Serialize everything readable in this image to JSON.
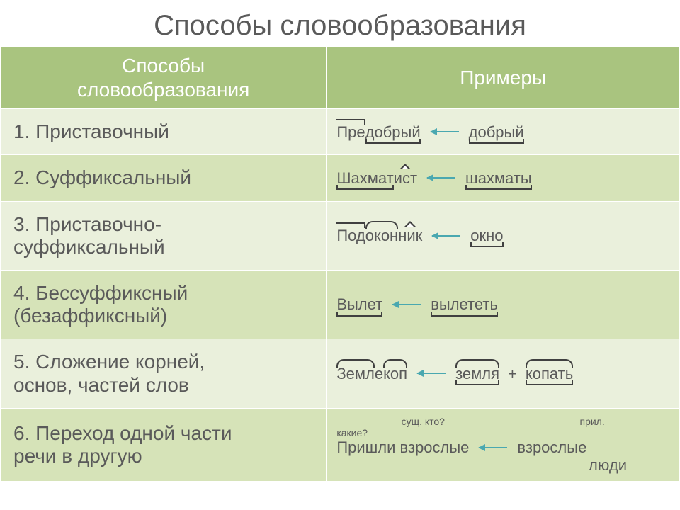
{
  "title": "Способы словообразования",
  "colors": {
    "header_bg": "#a9c47f",
    "row_alt_a": "#eaf0dc",
    "row_alt_b": "#d6e3b8",
    "text": "#5a5a5a",
    "header_text": "#ffffff",
    "arrow": "#4aa8b0",
    "morpheme": "#404040"
  },
  "layout": {
    "col1_width_pct": 48,
    "col2_width_pct": 52,
    "title_fontsize": 40,
    "header_fontsize": 28,
    "method_fontsize": 28,
    "example_fontsize": 22
  },
  "headers": {
    "col1_line1": "Способы",
    "col1_line2": "словообразования",
    "col2": "Примеры"
  },
  "rows": [
    {
      "num": "1.",
      "method": "Приставочный",
      "example": {
        "kind": "derive",
        "result": {
          "parts": [
            {
              "t": "Пре",
              "m": "prefix"
            },
            {
              "t": "добрый",
              "m": "base"
            }
          ]
        },
        "source": {
          "parts": [
            {
              "t": "добрый",
              "m": "base"
            }
          ]
        }
      }
    },
    {
      "num": "2.",
      "method": "Суффиксальный",
      "example": {
        "kind": "derive",
        "result": {
          "parts": [
            {
              "t": "Шахмат",
              "m": "base"
            },
            {
              "t": "ист",
              "m": "suffix"
            }
          ]
        },
        "source": {
          "parts": [
            {
              "t": "шахматы",
              "m": "base"
            }
          ]
        }
      }
    },
    {
      "num": "3.",
      "method_line1": "Приставочно-",
      "method_line2": "суффиксальный",
      "example": {
        "kind": "derive",
        "result": {
          "parts": [
            {
              "t": "Под",
              "m": "prefix"
            },
            {
              "t": "окон",
              "m": "root"
            },
            {
              "t": "ник",
              "m": "suffix"
            }
          ]
        },
        "source": {
          "parts": [
            {
              "t": "окно",
              "m": "base"
            }
          ]
        }
      }
    },
    {
      "num": "4.",
      "method_line1": "Бессуффиксный",
      "method_line2": "(безаффиксный)",
      "example": {
        "kind": "derive",
        "result": {
          "parts": [
            {
              "t": "Вылет",
              "m": "base"
            }
          ]
        },
        "source": {
          "parts": [
            {
              "t": "вылететь",
              "m": "base"
            }
          ]
        }
      }
    },
    {
      "num": "5.",
      "method_line1": "Сложение корней,",
      "method_line2": "основ, частей слов",
      "example": {
        "kind": "compound",
        "result": {
          "parts": [
            {
              "t": "Земл",
              "m": "root"
            },
            {
              "t": "е",
              "m": ""
            },
            {
              "t": "коп",
              "m": "root"
            }
          ]
        },
        "sources": [
          {
            "parts": [
              {
                "t": "земля",
                "m": "root-base"
              }
            ]
          },
          {
            "parts": [
              {
                "t": "копать",
                "m": "root-base"
              }
            ]
          }
        ],
        "plus": "+"
      }
    },
    {
      "num": "6.",
      "method_line1": "Переход одной части",
      "method_line2": "речи в другую",
      "example": {
        "kind": "conversion",
        "top_labels": {
          "left": "сущ. кто?",
          "right": "прил."
        },
        "q_label": "какие?",
        "left_phrase": "Пришли взрослые",
        "right_phrase": "взрослые",
        "right_phrase2": "люди"
      }
    }
  ]
}
